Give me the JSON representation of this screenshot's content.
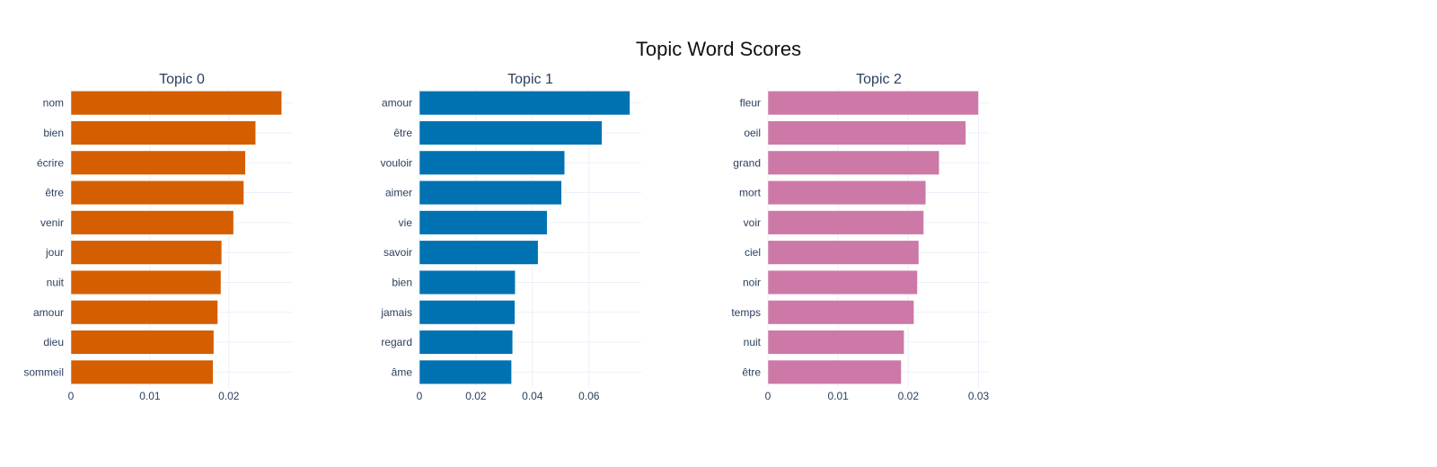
{
  "chart_data": {
    "type": "bar",
    "orientation": "horizontal",
    "title": "Topic Word Scores",
    "grid": true,
    "panels": [
      {
        "title": "Topic 0",
        "color": "#D55E00",
        "categories": [
          "nom",
          "bien",
          "écrire",
          "être",
          "venir",
          "jour",
          "nuit",
          "amour",
          "dieu",
          "sommeil"
        ],
        "values": [
          0.0267,
          0.0234,
          0.0221,
          0.0219,
          0.0206,
          0.0191,
          0.019,
          0.0186,
          0.0181,
          0.018
        ],
        "xlim": [
          0,
          0.0281
        ],
        "xticks": [
          0,
          0.01,
          0.02
        ],
        "xtick_labels": [
          "0",
          "0.01",
          "0.02"
        ]
      },
      {
        "title": "Topic 1",
        "color": "#0072B2",
        "categories": [
          "amour",
          "être",
          "vouloir",
          "aimer",
          "vie",
          "savoir",
          "bien",
          "jamais",
          "regard",
          "âme"
        ],
        "values": [
          0.0745,
          0.0646,
          0.0514,
          0.0503,
          0.0452,
          0.042,
          0.0339,
          0.0338,
          0.033,
          0.0326
        ],
        "xlim": [
          0,
          0.0785
        ],
        "xticks": [
          0,
          0.02,
          0.04,
          0.06
        ],
        "xtick_labels": [
          "0",
          "0.02",
          "0.04",
          "0.06"
        ]
      },
      {
        "title": "Topic 2",
        "color": "#CC79A7",
        "categories": [
          "fleur",
          "oeil",
          "grand",
          "mort",
          "voir",
          "ciel",
          "noir",
          "temps",
          "nuit",
          "être"
        ],
        "values": [
          0.03,
          0.0282,
          0.0244,
          0.0225,
          0.0222,
          0.0215,
          0.0213,
          0.0208,
          0.0194,
          0.019
        ],
        "xlim": [
          0,
          0.0316
        ],
        "xticks": [
          0,
          0.01,
          0.02,
          0.03
        ],
        "xtick_labels": [
          "0",
          "0.01",
          "0.02",
          "0.03"
        ]
      }
    ]
  }
}
